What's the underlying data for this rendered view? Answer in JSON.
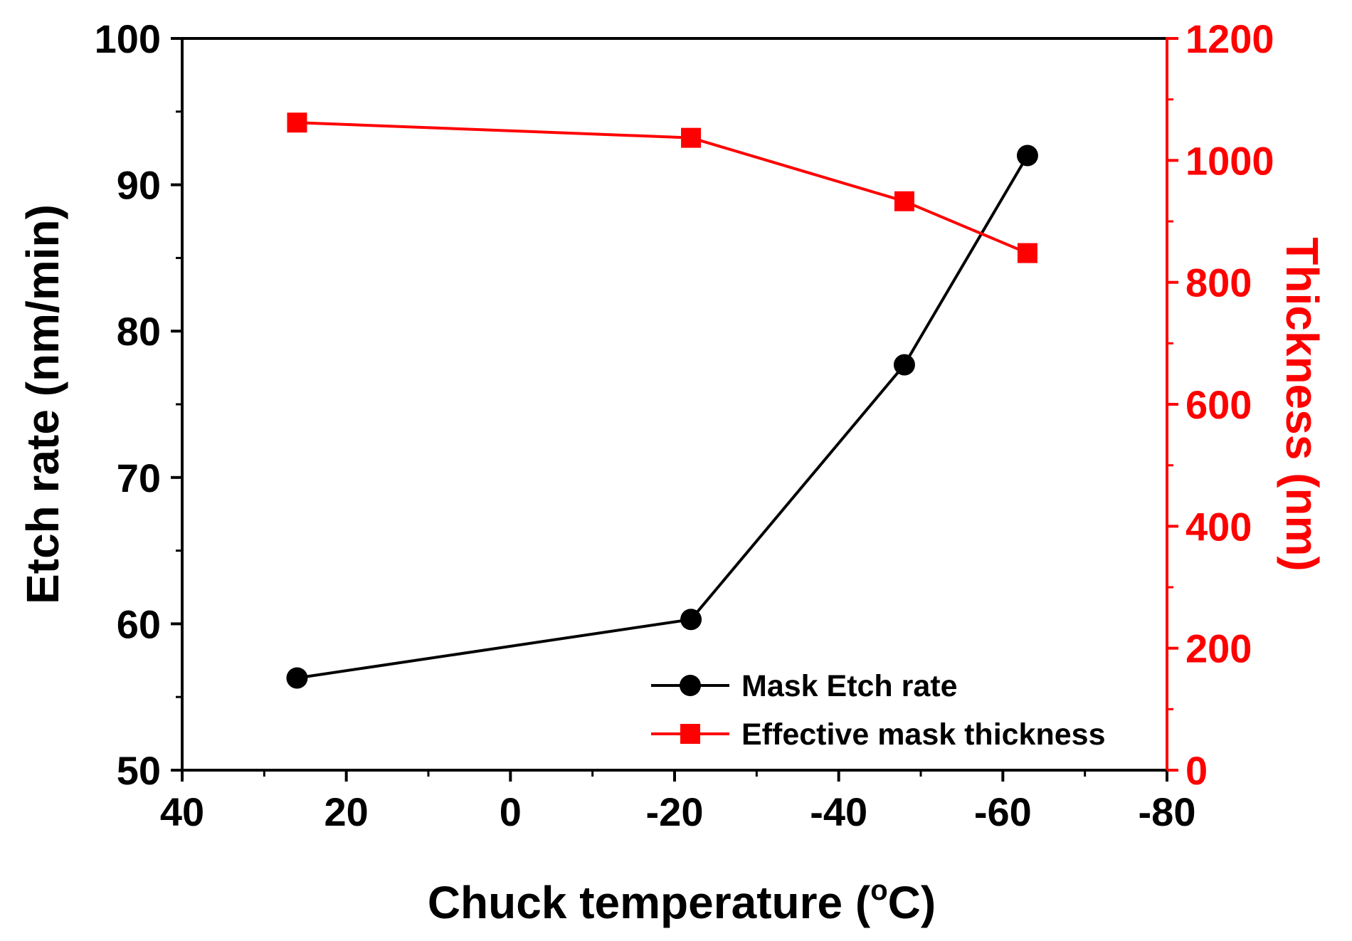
{
  "chart_data": {
    "type": "line",
    "xlabel": "Chuck temperature (",
    "xlabel_unit_sup": "o",
    "xlabel_unit": "C)",
    "ylabel_left": "Etch rate (nm/min)",
    "ylabel_right": "Thickness (nm)",
    "xlim": [
      40,
      -80
    ],
    "ylim_left": [
      50,
      100
    ],
    "ylim_right": [
      0,
      1200
    ],
    "x_ticks": [
      40,
      20,
      0,
      -20,
      -40,
      -60,
      -80
    ],
    "x_tick_labels": [
      "40",
      "20",
      "0",
      "-20",
      "-40",
      "-60",
      "-80"
    ],
    "y_left_ticks": [
      50,
      60,
      70,
      80,
      90,
      100
    ],
    "y_left_tick_labels": [
      "50",
      "60",
      "70",
      "80",
      "90",
      "100"
    ],
    "y_right_ticks": [
      0,
      200,
      400,
      600,
      800,
      1000,
      1200
    ],
    "y_right_tick_labels": [
      "0",
      "200",
      "400",
      "600",
      "800",
      "1000",
      "1200"
    ],
    "grid": false,
    "legend_position": "bottom-right",
    "series": [
      {
        "name": "Mask Etch rate",
        "axis": "left",
        "color": "#000000",
        "marker": "circle",
        "x": [
          26,
          -22,
          -48,
          -63
        ],
        "y": [
          56.3,
          60.3,
          77.7,
          92.0
        ]
      },
      {
        "name": "Effective mask thickness",
        "axis": "right",
        "color": "#ff0000",
        "marker": "square",
        "x": [
          26,
          -22,
          -48,
          -63
        ],
        "y": [
          1062,
          1037,
          933,
          848
        ]
      }
    ]
  }
}
